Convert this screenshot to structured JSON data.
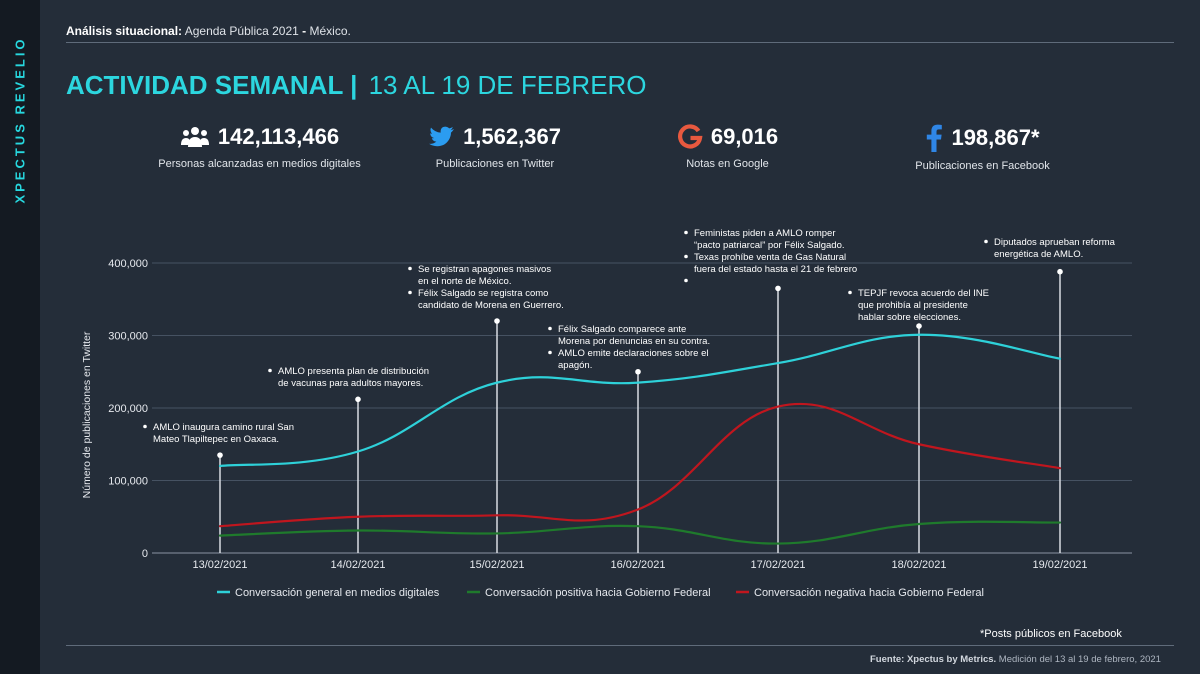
{
  "side_label": "XPECTUS REVELIO",
  "header": {
    "subtitle_bold": "Análisis situacional:",
    "subtitle_rest": " Agenda Pública 2021 ",
    "subtitle_dash": "-",
    "subtitle_end": " México.",
    "title_bold": "ACTIVIDAD SEMANAL |",
    "title_dates": "13 AL 19 DE FEBRERO",
    "title_color": "#2cd6df"
  },
  "kpis": [
    {
      "icon": "people-icon",
      "value": "142,113,466",
      "label": "Personas alcanzadas en medios digitales"
    },
    {
      "icon": "twitter-icon",
      "value": "1,562,367",
      "label": "Publicaciones en Twitter"
    },
    {
      "icon": "google-icon",
      "value": "69,016",
      "label": "Notas en Google"
    },
    {
      "icon": "facebook-icon",
      "value": "198,867*",
      "label": "Publicaciones en Facebook"
    }
  ],
  "chart_data": {
    "type": "line",
    "x": [
      "13/02/2021",
      "14/02/2021",
      "15/02/2021",
      "16/02/2021",
      "17/02/2021",
      "18/02/2021",
      "19/02/2021"
    ],
    "ylabel": "Número de publicaciones en Twitter",
    "ylim": [
      0,
      400000
    ],
    "yticks": [
      "0",
      "100,000",
      "200,000",
      "300,000",
      "400,000"
    ],
    "grid": true,
    "legend_position": "bottom",
    "series": [
      {
        "name": "Conversación general en medios digitales",
        "color": "#2ed1d9",
        "values": [
          120000,
          140000,
          235000,
          235000,
          262000,
          301000,
          268000
        ]
      },
      {
        "name": "Conversación positiva hacia Gobierno Federal",
        "color": "#1f7a2c",
        "values": [
          24000,
          31000,
          27000,
          37000,
          13000,
          40000,
          42000
        ]
      },
      {
        "name": "Conversación negativa hacia Gobierno Federal",
        "color": "#c0161e",
        "values": [
          37000,
          50000,
          52000,
          60000,
          202000,
          150000,
          117000
        ]
      }
    ],
    "annotations": [
      {
        "x_index": 0,
        "top_value": 135000,
        "lines": [
          "AMLO inaugura camino rural San",
          "Mateo Tlapiltepec en Oaxaca."
        ]
      },
      {
        "x_index": 1,
        "top_value": 212000,
        "lines": [
          "AMLO presenta plan de distribución",
          "de vacunas para adultos mayores."
        ]
      },
      {
        "x_index": 2,
        "top_value": 320000,
        "lines": [
          "Se registran apagones masivos",
          "en el norte de México.",
          "Félix Salgado se registra como",
          "candidato de Morena en Guerrero."
        ]
      },
      {
        "x_index": 3,
        "top_value": 250000,
        "lines": [
          "Félix Salgado comparece ante",
          "Morena por denuncias en su contra.",
          "AMLO emite declaraciones sobre el",
          "apagón."
        ]
      },
      {
        "x_index": 4,
        "top_value": 365000,
        "lines": [
          "Feministas piden a AMLO romper",
          "“pacto patriarcal” por Félix Salgado.",
          "Texas prohíbe venta de Gas Natural",
          "fuera del estado hasta el 21 de febrero",
          "."
        ]
      },
      {
        "x_index": 5,
        "top_value": 313000,
        "lines": [
          "TEPJF revoca acuerdo del INE",
          "que prohibía al presidente",
          "hablar sobre elecciones."
        ]
      },
      {
        "x_index": 6,
        "top_value": 388000,
        "lines": [
          "Diputados aprueban reforma",
          "energética de AMLO."
        ]
      }
    ]
  },
  "footnote": "*Posts públicos en Facebook",
  "source_bold": "Fuente: Xpectus by Metrics.",
  "source_rest": " Medición del 13 al 19 de febrero, 2021"
}
